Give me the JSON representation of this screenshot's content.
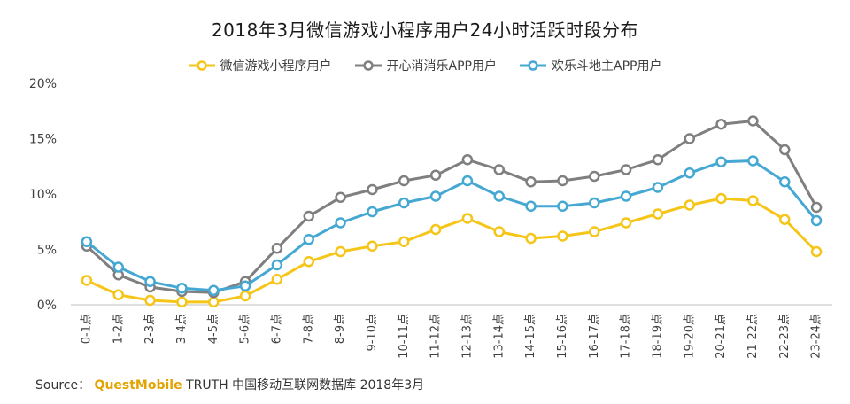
{
  "chart_data": {
    "type": "line",
    "title": "2018年3月微信游戏小程序用户24小时活跃时段分布",
    "categories": [
      "0-1点",
      "1-2点",
      "2-3点",
      "3-4点",
      "4-5点",
      "5-6点",
      "6-7点",
      "7-8点",
      "8-9点",
      "9-10点",
      "10-11点",
      "11-12点",
      "12-13点",
      "13-14点",
      "14-15点",
      "15-16点",
      "16-17点",
      "17-18点",
      "18-19点",
      "19-20点",
      "20-21点",
      "21-22点",
      "22-23点",
      "23-24点"
    ],
    "ylim": [
      0,
      20
    ],
    "yticks": [
      "0%",
      "5%",
      "10%",
      "15%",
      "20%"
    ],
    "legend_position": "top-center",
    "series": [
      {
        "name": "微信游戏小程序用户",
        "color": "#f5c518",
        "values": [
          2.2,
          0.9,
          0.4,
          0.25,
          0.25,
          0.8,
          2.3,
          3.9,
          4.8,
          5.3,
          5.7,
          6.8,
          7.8,
          6.6,
          6.0,
          6.2,
          6.6,
          7.4,
          8.2,
          9.0,
          9.6,
          9.4,
          7.7,
          4.8
        ]
      },
      {
        "name": "开心消消乐APP用户",
        "color": "#7f7f7f",
        "values": [
          5.3,
          2.7,
          1.6,
          1.2,
          1.1,
          2.1,
          5.1,
          8.0,
          9.7,
          10.4,
          11.2,
          11.7,
          13.1,
          12.2,
          11.1,
          11.2,
          11.6,
          12.2,
          13.1,
          15.0,
          16.3,
          16.6,
          14.0,
          8.8
        ]
      },
      {
        "name": "欢乐斗地主APP用户",
        "color": "#45a8d3",
        "values": [
          5.7,
          3.4,
          2.1,
          1.5,
          1.3,
          1.7,
          3.6,
          5.9,
          7.4,
          8.4,
          9.2,
          9.8,
          11.2,
          9.8,
          8.9,
          8.9,
          9.2,
          9.8,
          10.6,
          11.9,
          12.9,
          13.0,
          11.1,
          7.6
        ]
      }
    ]
  },
  "source": {
    "prefix": "Source：",
    "brand": "QuestMobile",
    "rest": " TRUTH 中国移动互联网数据库 2018年3月"
  }
}
